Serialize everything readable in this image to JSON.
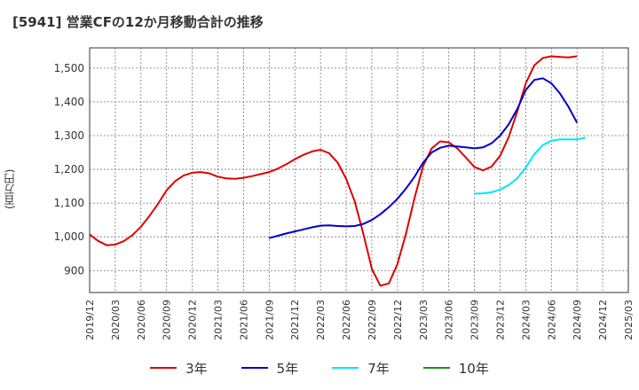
{
  "chart_title": "[5941]  営業CFの12か月移動合計の推移",
  "chart_data": {
    "type": "line",
    "title": "[5941]  営業CFの12か月移動合計の推移",
    "ylabel": "(百万円)",
    "xlabel": "",
    "ylim": [
      835,
      1560
    ],
    "yticks": [
      900,
      1000,
      1100,
      1200,
      1300,
      1400,
      1500
    ],
    "ytick_labels": [
      "900",
      "1,000",
      "1,100",
      "1,200",
      "1,300",
      "1,400",
      "1,500"
    ],
    "xlim": [
      "2019-12",
      "2025-03"
    ],
    "xtick_labels": [
      "2019/12",
      "2020/03",
      "2020/06",
      "2020/09",
      "2020/12",
      "2021/03",
      "2021/06",
      "2021/09",
      "2021/12",
      "2022/03",
      "2022/06",
      "2022/09",
      "2022/12",
      "2023/03",
      "2023/06",
      "2023/09",
      "2023/12",
      "2024/03",
      "2024/06",
      "2024/09",
      "2024/12",
      "2025/03"
    ],
    "grid": true,
    "legend_position": "bottom",
    "series": [
      {
        "name": "3年",
        "color": "#e00000",
        "points": [
          [
            "2019-12",
            1007
          ],
          [
            "2020-01",
            988
          ],
          [
            "2020-02",
            975
          ],
          [
            "2020-03",
            977
          ],
          [
            "2020-04",
            987
          ],
          [
            "2020-05",
            1005
          ],
          [
            "2020-06",
            1030
          ],
          [
            "2020-07",
            1062
          ],
          [
            "2020-08",
            1098
          ],
          [
            "2020-09",
            1138
          ],
          [
            "2020-10",
            1165
          ],
          [
            "2020-11",
            1182
          ],
          [
            "2020-12",
            1190
          ],
          [
            "2021-01",
            1192
          ],
          [
            "2021-02",
            1188
          ],
          [
            "2021-03",
            1178
          ],
          [
            "2021-04",
            1173
          ],
          [
            "2021-05",
            1172
          ],
          [
            "2021-06",
            1175
          ],
          [
            "2021-07",
            1180
          ],
          [
            "2021-08",
            1186
          ],
          [
            "2021-09",
            1192
          ],
          [
            "2021-10",
            1202
          ],
          [
            "2021-11",
            1215
          ],
          [
            "2021-12",
            1230
          ],
          [
            "2022-01",
            1243
          ],
          [
            "2022-02",
            1253
          ],
          [
            "2022-03",
            1258
          ],
          [
            "2022-04",
            1248
          ],
          [
            "2022-05",
            1220
          ],
          [
            "2022-06",
            1172
          ],
          [
            "2022-07",
            1105
          ],
          [
            "2022-08",
            1010
          ],
          [
            "2022-09",
            905
          ],
          [
            "2022-10",
            855
          ],
          [
            "2022-11",
            862
          ],
          [
            "2022-12",
            920
          ],
          [
            "2023-01",
            1010
          ],
          [
            "2023-02",
            1115
          ],
          [
            "2023-03",
            1210
          ],
          [
            "2023-04",
            1262
          ],
          [
            "2023-05",
            1283
          ],
          [
            "2023-06",
            1280
          ],
          [
            "2023-07",
            1262
          ],
          [
            "2023-08",
            1235
          ],
          [
            "2023-09",
            1207
          ],
          [
            "2023-10",
            1197
          ],
          [
            "2023-11",
            1208
          ],
          [
            "2023-12",
            1240
          ],
          [
            "2024-01",
            1295
          ],
          [
            "2024-02",
            1370
          ],
          [
            "2024-03",
            1455
          ],
          [
            "2024-04",
            1508
          ],
          [
            "2024-05",
            1530
          ],
          [
            "2024-06",
            1535
          ],
          [
            "2024-07",
            1533
          ],
          [
            "2024-08",
            1532
          ],
          [
            "2024-09",
            1535
          ]
        ]
      },
      {
        "name": "5年",
        "color": "#0000cc",
        "points": [
          [
            "2021-09",
            996
          ],
          [
            "2021-10",
            1003
          ],
          [
            "2021-11",
            1010
          ],
          [
            "2021-12",
            1016
          ],
          [
            "2022-01",
            1022
          ],
          [
            "2022-02",
            1028
          ],
          [
            "2022-03",
            1033
          ],
          [
            "2022-04",
            1034
          ],
          [
            "2022-05",
            1032
          ],
          [
            "2022-06",
            1031
          ],
          [
            "2022-07",
            1032
          ],
          [
            "2022-08",
            1038
          ],
          [
            "2022-09",
            1050
          ],
          [
            "2022-10",
            1067
          ],
          [
            "2022-11",
            1088
          ],
          [
            "2022-12",
            1113
          ],
          [
            "2023-01",
            1143
          ],
          [
            "2023-02",
            1178
          ],
          [
            "2023-03",
            1220
          ],
          [
            "2023-04",
            1250
          ],
          [
            "2023-05",
            1264
          ],
          [
            "2023-06",
            1270
          ],
          [
            "2023-07",
            1268
          ],
          [
            "2023-08",
            1265
          ],
          [
            "2023-09",
            1262
          ],
          [
            "2023-10",
            1265
          ],
          [
            "2023-11",
            1277
          ],
          [
            "2023-12",
            1300
          ],
          [
            "2024-01",
            1333
          ],
          [
            "2024-02",
            1378
          ],
          [
            "2024-03",
            1435
          ],
          [
            "2024-04",
            1465
          ],
          [
            "2024-05",
            1470
          ],
          [
            "2024-06",
            1455
          ],
          [
            "2024-07",
            1425
          ],
          [
            "2024-08",
            1385
          ],
          [
            "2024-09",
            1338
          ]
        ]
      },
      {
        "name": "7年",
        "color": "#00e5ff",
        "points": [
          [
            "2023-09",
            1128
          ],
          [
            "2023-10",
            1129
          ],
          [
            "2023-11",
            1132
          ],
          [
            "2023-12",
            1140
          ],
          [
            "2024-01",
            1153
          ],
          [
            "2024-02",
            1173
          ],
          [
            "2024-03",
            1205
          ],
          [
            "2024-04",
            1245
          ],
          [
            "2024-05",
            1272
          ],
          [
            "2024-06",
            1285
          ],
          [
            "2024-07",
            1289
          ],
          [
            "2024-08",
            1289
          ],
          [
            "2024-09",
            1289
          ],
          [
            "2024-10",
            1294
          ]
        ]
      },
      {
        "name": "10年",
        "color": "#228b22",
        "points": []
      }
    ]
  }
}
